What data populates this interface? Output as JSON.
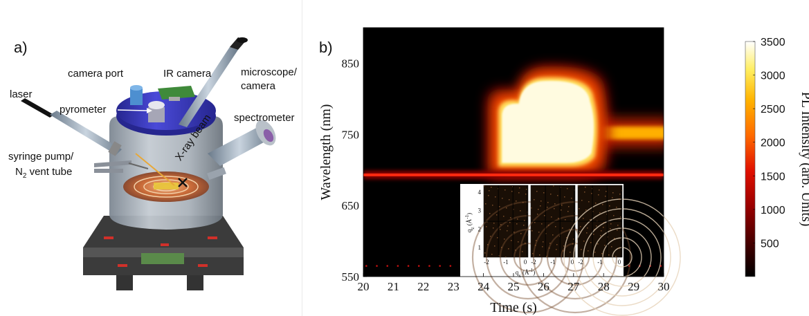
{
  "panel_a": {
    "label": "a)",
    "callouts": {
      "camera_port": "camera port",
      "ir_camera": "IR camera",
      "microscope_line1": "microscope/",
      "microscope_line2": "camera",
      "laser": "laser",
      "pyrometer": "pyrometer",
      "spectrometer": "spectrometer",
      "xray_beam": "X-ray beam",
      "syringe_line1": "syringe pump/",
      "syringe_line2_prefix": "N",
      "syringe_line2_sub": "2",
      "syringe_line2_suffix": " vent tube"
    },
    "colors": {
      "lid": "#3a3ab8",
      "chamber": "#9aa3ad",
      "base": "#3a3a3a",
      "heater": "#d07040"
    }
  },
  "panel_b": {
    "label": "b)",
    "chart_data": {
      "type": "heatmap",
      "xlabel": "Time (s)",
      "ylabel": "Wavelength (nm)",
      "xlim": [
        20,
        30
      ],
      "ylim": [
        550,
        900
      ],
      "x_ticks": [
        "20",
        "21",
        "22",
        "23",
        "24",
        "25",
        "26",
        "27",
        "28",
        "29",
        "30"
      ],
      "y_ticks": [
        "550",
        "650",
        "750",
        "850"
      ],
      "colorbar": {
        "label": "PL Intensity (arb. Units)",
        "range": [
          0,
          3500
        ],
        "ticks": [
          "500",
          "1000",
          "1500",
          "2000",
          "2500",
          "3000",
          "3500"
        ],
        "colormap": "hot"
      },
      "features": {
        "laser_line_nm": 693,
        "pl_blob_time_range_s": [
          24.5,
          27.8
        ],
        "pl_blob_wavelength_range_nm": [
          705,
          830
        ],
        "pl_tail_end_s": 30,
        "pl_tail_wavelength_nm": 752
      },
      "insets": {
        "x_label_base": "q",
        "x_label_sub": "x",
        "x_label_unit": " (Å",
        "x_label_exp": "-1",
        "x_label_close": ")",
        "y_label_base": "q",
        "y_label_sub": "z",
        "y_label_unit": " (Å",
        "y_label_exp": "-1",
        "y_label_close": ")",
        "x_ticks": [
          "-2",
          "-1",
          "0"
        ],
        "y_ticks": [
          "1",
          "2",
          "3",
          "4"
        ],
        "count": 3
      }
    }
  }
}
